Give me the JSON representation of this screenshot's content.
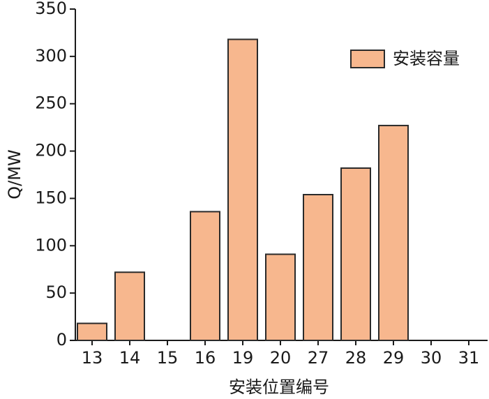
{
  "chart_data": {
    "type": "bar",
    "x_label": "安装位置编号",
    "y_label": "Q/MW",
    "categories": [
      "13",
      "14",
      "15",
      "16",
      "19",
      "20",
      "27",
      "28",
      "29",
      "30",
      "31"
    ],
    "series": [
      {
        "name": "安装容量",
        "color": "#f7b78e",
        "values": [
          18,
          72,
          0,
          136,
          318,
          91,
          154,
          182,
          227,
          0,
          0
        ]
      }
    ],
    "ylim": [
      0,
      350
    ],
    "yticks": [
      0,
      50,
      100,
      150,
      200,
      250,
      300,
      350
    ],
    "legend": "upper right"
  }
}
